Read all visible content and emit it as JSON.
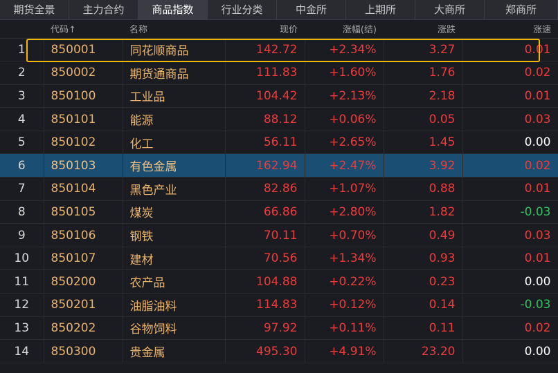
{
  "tabs": [
    {
      "label": "期货全景",
      "active": false
    },
    {
      "label": "主力合约",
      "active": false
    },
    {
      "label": "商品指数",
      "active": true
    },
    {
      "label": "行业分类",
      "active": false
    },
    {
      "label": "中金所",
      "active": false
    },
    {
      "label": "上期所",
      "active": false
    },
    {
      "label": "大商所",
      "active": false
    },
    {
      "label": "郑商所",
      "active": false
    }
  ],
  "columns": {
    "idx": "",
    "code": "代码↑",
    "name": "名称",
    "price": "现价",
    "change_pct": "涨幅(结)",
    "change": "涨跌",
    "speed": "涨速"
  },
  "rows": [
    {
      "idx": "1",
      "code": "850001",
      "name": "同花顺商品",
      "price": "142.72",
      "change_pct": "+2.34%",
      "change": "3.27",
      "speed": "0.01",
      "speed_dir": "up"
    },
    {
      "idx": "2",
      "code": "850002",
      "name": "期货通商品",
      "price": "111.83",
      "change_pct": "+1.60%",
      "change": "1.76",
      "speed": "0.02",
      "speed_dir": "up"
    },
    {
      "idx": "3",
      "code": "850100",
      "name": "工业品",
      "price": "104.42",
      "change_pct": "+2.13%",
      "change": "2.18",
      "speed": "0.01",
      "speed_dir": "up"
    },
    {
      "idx": "4",
      "code": "850101",
      "name": "能源",
      "price": "88.12",
      "change_pct": "+0.06%",
      "change": "0.05",
      "speed": "0.03",
      "speed_dir": "up"
    },
    {
      "idx": "5",
      "code": "850102",
      "name": "化工",
      "price": "56.11",
      "change_pct": "+2.65%",
      "change": "1.45",
      "speed": "0.00",
      "speed_dir": "flat"
    },
    {
      "idx": "6",
      "code": "850103",
      "name": "有色金属",
      "price": "162.94",
      "change_pct": "+2.47%",
      "change": "3.92",
      "speed": "0.02",
      "speed_dir": "up"
    },
    {
      "idx": "7",
      "code": "850104",
      "name": "黑色产业",
      "price": "82.86",
      "change_pct": "+1.07%",
      "change": "0.88",
      "speed": "0.01",
      "speed_dir": "up"
    },
    {
      "idx": "8",
      "code": "850105",
      "name": "煤炭",
      "price": "66.86",
      "change_pct": "+2.80%",
      "change": "1.82",
      "speed": "-0.03",
      "speed_dir": "down"
    },
    {
      "idx": "9",
      "code": "850106",
      "name": "钢铁",
      "price": "70.11",
      "change_pct": "+0.70%",
      "change": "0.49",
      "speed": "0.03",
      "speed_dir": "up"
    },
    {
      "idx": "10",
      "code": "850107",
      "name": "建材",
      "price": "70.56",
      "change_pct": "+1.34%",
      "change": "0.93",
      "speed": "0.01",
      "speed_dir": "up"
    },
    {
      "idx": "11",
      "code": "850200",
      "name": "农产品",
      "price": "104.88",
      "change_pct": "+0.22%",
      "change": "0.23",
      "speed": "0.00",
      "speed_dir": "flat"
    },
    {
      "idx": "12",
      "code": "850201",
      "name": "油脂油料",
      "price": "114.83",
      "change_pct": "+0.12%",
      "change": "0.14",
      "speed": "-0.03",
      "speed_dir": "down"
    },
    {
      "idx": "13",
      "code": "850202",
      "name": "谷物饲料",
      "price": "97.92",
      "change_pct": "+0.11%",
      "change": "0.11",
      "speed": "0.02",
      "speed_dir": "up"
    },
    {
      "idx": "14",
      "code": "850300",
      "name": "贵金属",
      "price": "495.30",
      "change_pct": "+4.91%",
      "change": "23.20",
      "speed": "0.00",
      "speed_dir": "flat"
    }
  ],
  "selected_row": 5,
  "highlighted_row": 0,
  "colors": {
    "up": "#ef3a3a",
    "down": "#2fc35d",
    "flat": "#ffffff",
    "name": "#e8b36b",
    "selected_bg": "#1a4f73",
    "highlight_border": "#f5b800"
  }
}
